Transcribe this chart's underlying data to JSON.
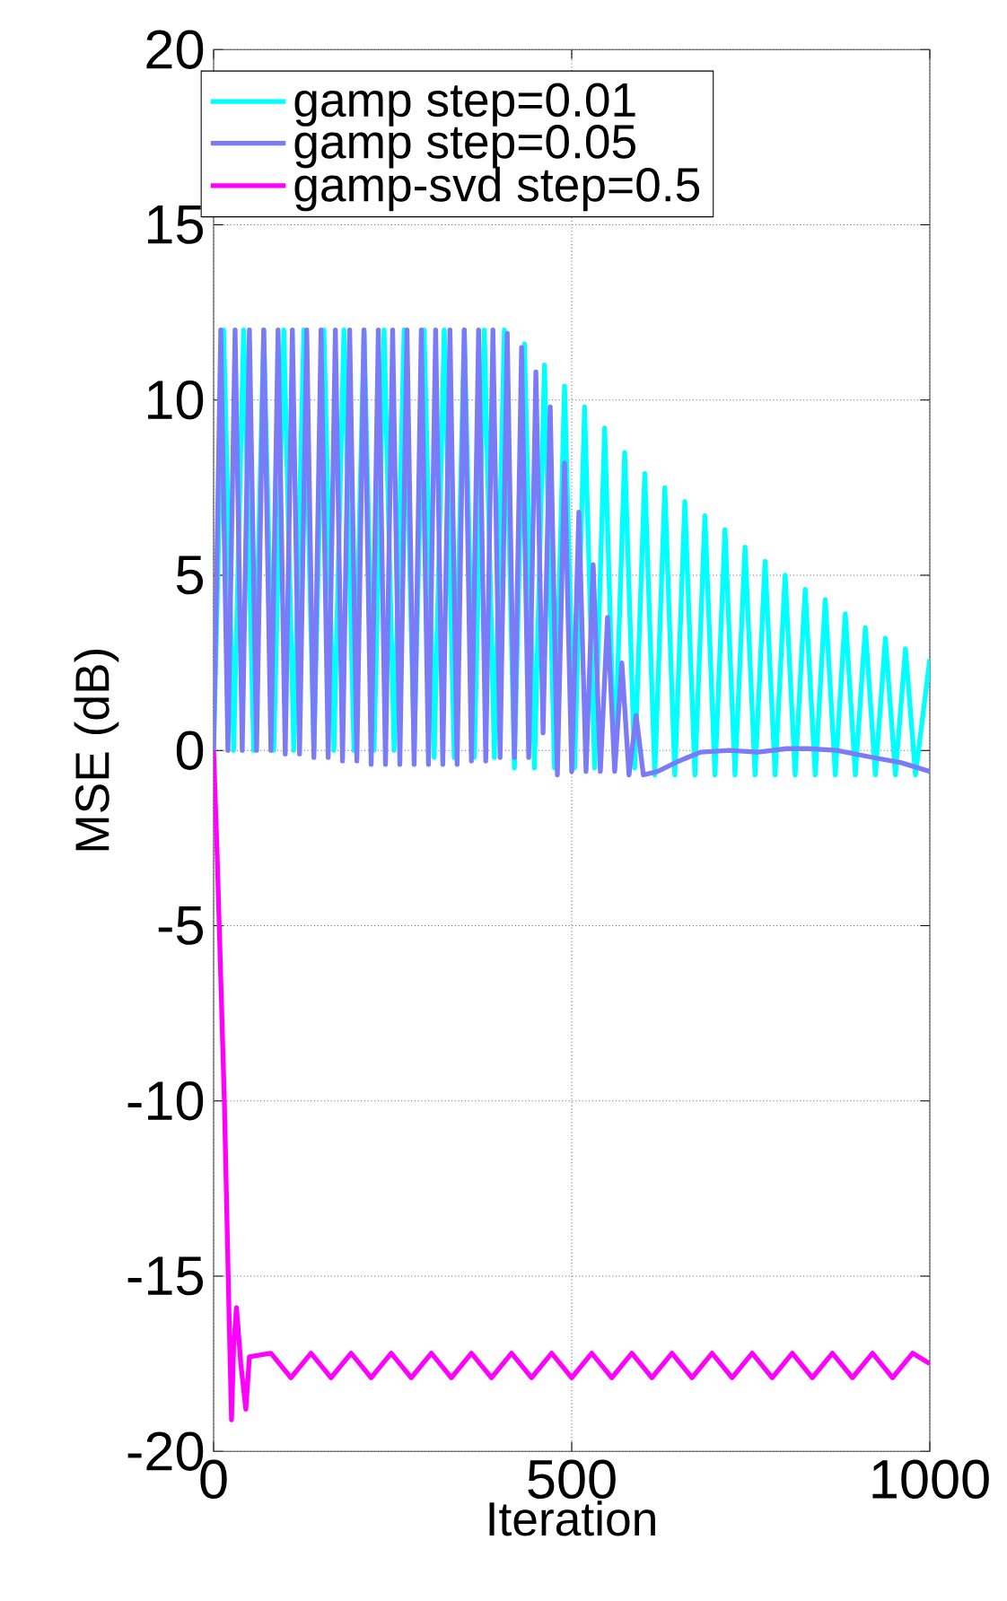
{
  "chart_data": {
    "type": "line",
    "xlabel": "Iteration",
    "ylabel": "MSE (dB)",
    "xlim": [
      0,
      1000
    ],
    "ylim": [
      -20,
      20
    ],
    "xticks": [
      0,
      500,
      1000
    ],
    "yticks": [
      -20,
      -15,
      -10,
      -5,
      0,
      5,
      10,
      15,
      20
    ],
    "grid": true,
    "legend": "top left",
    "marker": "none",
    "line_style": "solid",
    "series": [
      {
        "name": "gamp step=0.01",
        "color": "#00ffff",
        "x": [
          0,
          14,
          28,
          42,
          56,
          70,
          84,
          98,
          112,
          126,
          140,
          154,
          168,
          182,
          196,
          210,
          224,
          238,
          252,
          266,
          280,
          294,
          308,
          322,
          336,
          350,
          364,
          378,
          392,
          406,
          420,
          434,
          448,
          462,
          476,
          490,
          504,
          518,
          532,
          546,
          560,
          574,
          588,
          602,
          616,
          630,
          644,
          658,
          672,
          686,
          700,
          714,
          728,
          742,
          756,
          770,
          784,
          798,
          812,
          826,
          840,
          854,
          868,
          882,
          896,
          910,
          924,
          938,
          952,
          966,
          980,
          1000
        ],
        "values": [
          0,
          12,
          0,
          12,
          0,
          12,
          0,
          12,
          0,
          12,
          0,
          12,
          0,
          12,
          0,
          12,
          0,
          12,
          0,
          12,
          0,
          12,
          -0.2,
          12,
          -0.2,
          12,
          -0.2,
          12,
          -0.2,
          12,
          -0.5,
          11.6,
          -0.5,
          11,
          -0.5,
          10.4,
          -0.5,
          9.8,
          -0.5,
          9.2,
          -0.5,
          8.5,
          -0.5,
          7.9,
          -0.7,
          7.5,
          -0.7,
          7.1,
          -0.7,
          6.7,
          -0.7,
          6.3,
          -0.7,
          5.8,
          -0.7,
          5.4,
          -0.7,
          5.0,
          -0.7,
          4.6,
          -0.7,
          4.3,
          -0.7,
          3.9,
          -0.7,
          3.5,
          -0.7,
          3.2,
          -0.7,
          2.9,
          -0.7,
          2.6
        ]
      },
      {
        "name": "gamp step=0.05",
        "color": "#7b7bf7",
        "x": [
          0,
          10,
          20,
          30,
          40,
          50,
          60,
          70,
          80,
          90,
          100,
          110,
          120,
          130,
          140,
          150,
          160,
          170,
          180,
          190,
          200,
          210,
          220,
          230,
          240,
          250,
          260,
          270,
          280,
          290,
          300,
          310,
          320,
          330,
          340,
          350,
          360,
          370,
          380,
          390,
          400,
          410,
          420,
          430,
          440,
          450,
          460,
          470,
          480,
          490,
          500,
          510,
          520,
          530,
          540,
          550,
          560,
          570,
          580,
          590,
          600,
          620,
          650,
          680,
          720,
          760,
          800,
          830,
          870,
          920,
          960,
          1000
        ],
        "values": [
          0,
          12,
          0,
          12,
          0,
          12,
          0,
          12,
          0,
          12,
          -0.1,
          12,
          -0.1,
          12,
          -0.2,
          12,
          -0.2,
          12,
          -0.3,
          12,
          -0.3,
          12,
          -0.4,
          12,
          -0.4,
          12,
          -0.4,
          12,
          -0.4,
          12,
          -0.4,
          12,
          -0.4,
          12,
          -0.4,
          12,
          -0.3,
          12,
          -0.3,
          12,
          -0.2,
          11.9,
          -0.2,
          11.5,
          -0.2,
          10.8,
          0.5,
          9.8,
          -0.7,
          8.2,
          -0.6,
          6.8,
          -0.6,
          5.3,
          -0.6,
          3.8,
          -0.6,
          2.5,
          -0.7,
          1,
          -0.7,
          -0.6,
          -0.3,
          -0.05,
          0,
          -0.05,
          0.05,
          0.05,
          0,
          -0.2,
          -0.35,
          -0.6
        ]
      },
      {
        "name": "gamp-svd step=0.5",
        "color": "#ff00ff",
        "x": [
          0,
          5,
          15,
          22,
          25,
          28,
          32,
          38,
          45,
          50,
          80,
          108,
          136,
          164,
          192,
          220,
          248,
          276,
          304,
          332,
          360,
          388,
          416,
          444,
          472,
          500,
          528,
          556,
          584,
          612,
          640,
          668,
          696,
          724,
          752,
          780,
          808,
          836,
          864,
          892,
          920,
          948,
          976,
          1000
        ],
        "values": [
          0,
          -3,
          -10,
          -16.5,
          -19.1,
          -17,
          -15.9,
          -17.5,
          -18.8,
          -17.3,
          -17.2,
          -17.9,
          -17.2,
          -17.9,
          -17.2,
          -17.9,
          -17.2,
          -17.9,
          -17.2,
          -17.9,
          -17.2,
          -17.9,
          -17.2,
          -17.9,
          -17.2,
          -17.9,
          -17.2,
          -17.9,
          -17.2,
          -17.9,
          -17.2,
          -17.9,
          -17.2,
          -17.9,
          -17.2,
          -17.9,
          -17.2,
          -17.9,
          -17.2,
          -17.9,
          -17.2,
          -17.9,
          -17.2,
          -17.5
        ]
      }
    ]
  }
}
